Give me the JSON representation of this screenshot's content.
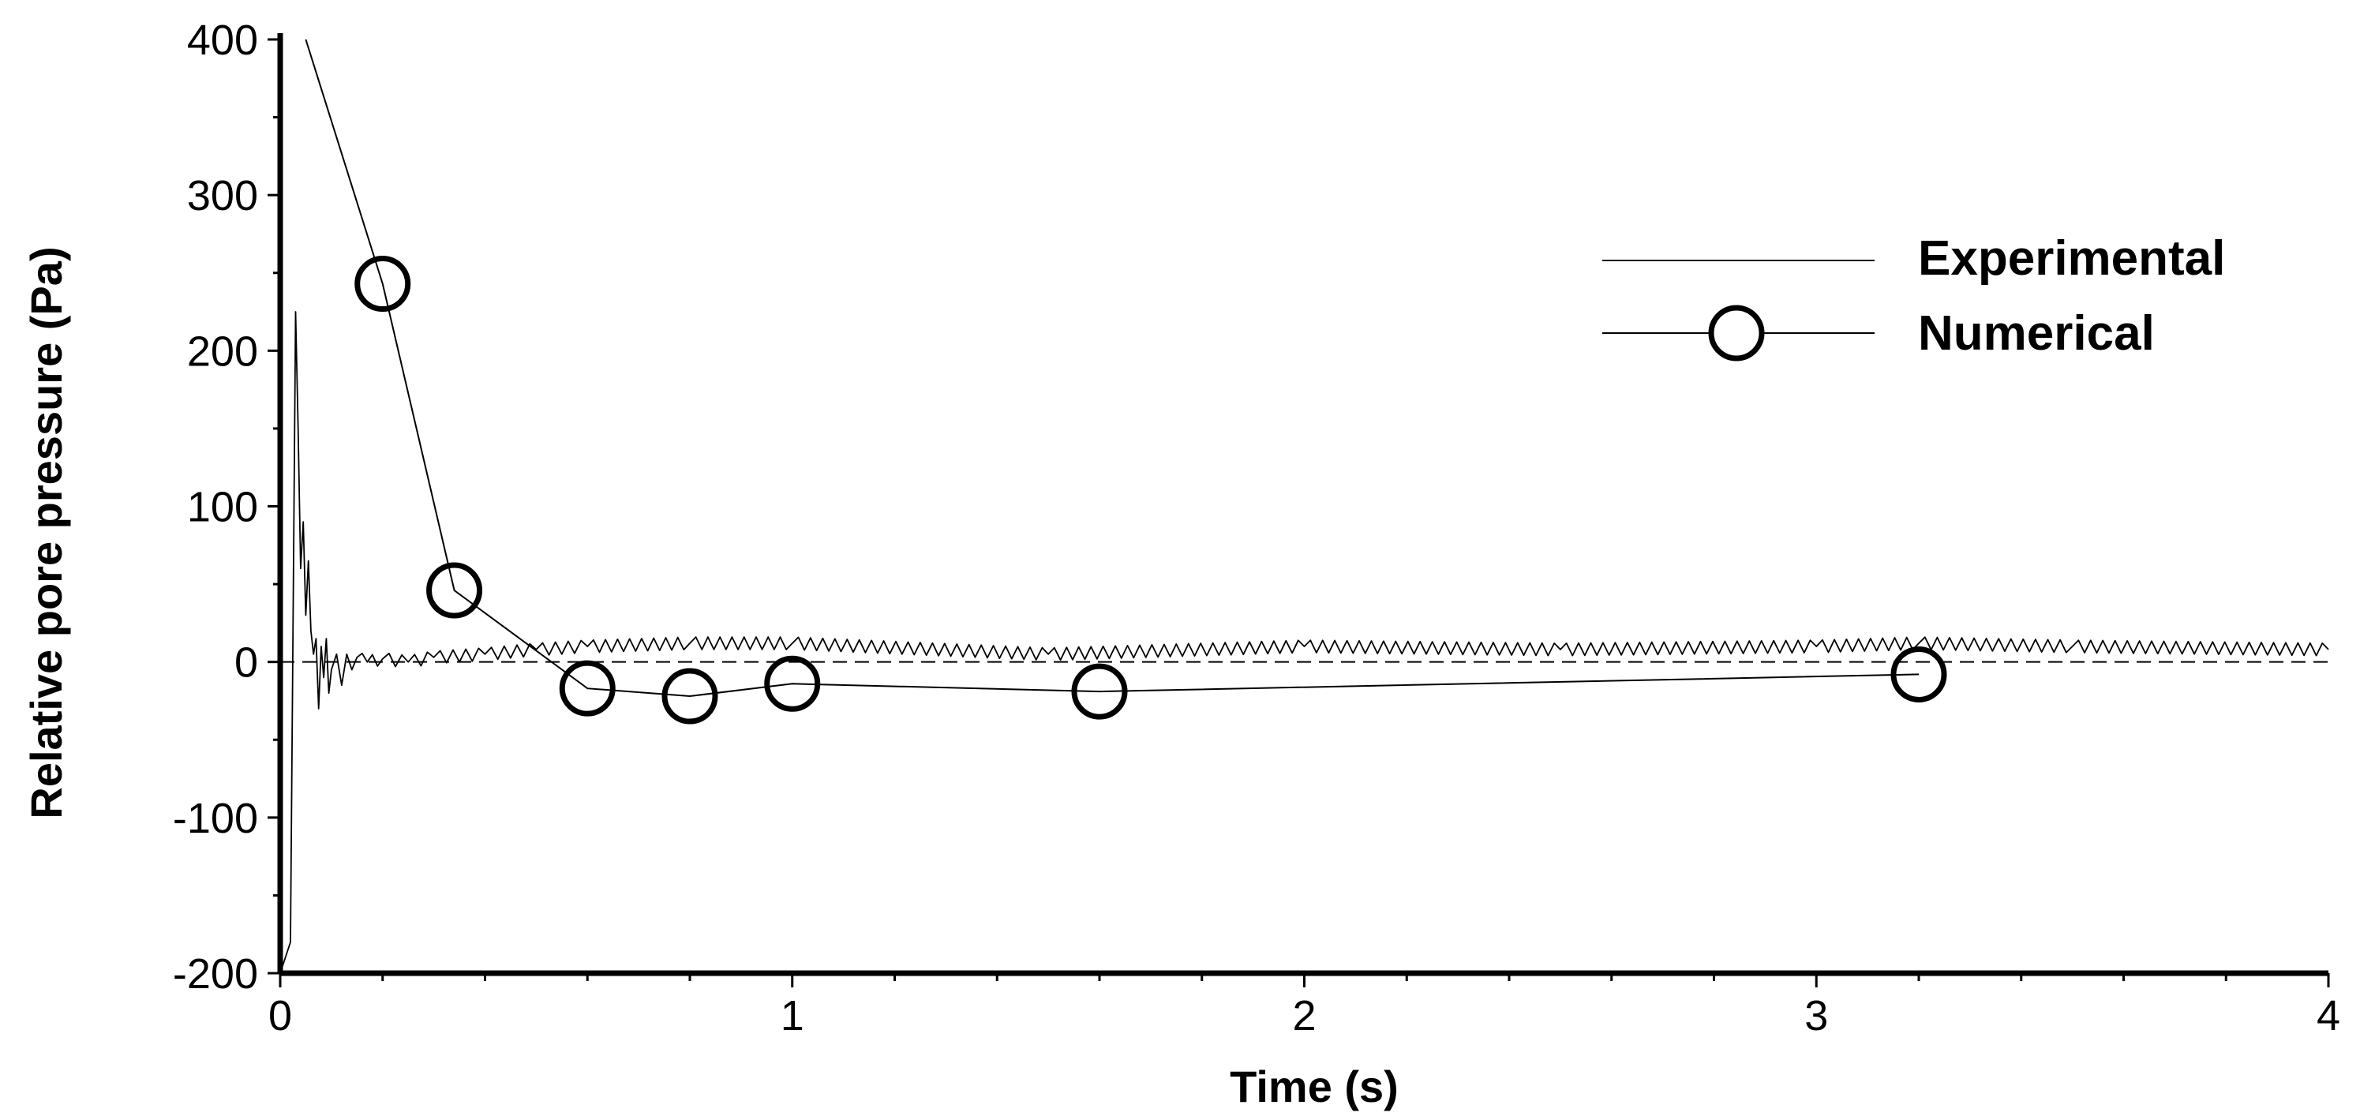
{
  "chart_data": {
    "type": "line",
    "title": "",
    "xlabel": "Time (s)",
    "ylabel": "Relative pore pressure (Pa)",
    "xlim": [
      0,
      4
    ],
    "ylim": [
      -200,
      400
    ],
    "x_ticks": [
      "0",
      "1",
      "2",
      "3",
      "4"
    ],
    "y_ticks": [
      "400",
      "300",
      "200",
      "100",
      "0",
      "-100",
      "-200"
    ],
    "grid": false,
    "zero_reference_line": "dashed",
    "legend": {
      "placement": "top-right"
    },
    "series": [
      {
        "name": "Experimental",
        "style": "thin line, no markers",
        "x": [
          0.0,
          0.02,
          0.03,
          0.035,
          0.04,
          0.045,
          0.05,
          0.055,
          0.06,
          0.065,
          0.07,
          0.075,
          0.08,
          0.085,
          0.09,
          0.095,
          0.1,
          0.11,
          0.12,
          0.13,
          0.14,
          0.15,
          0.17,
          0.2,
          0.25,
          0.3,
          0.4,
          0.5,
          0.6,
          0.8,
          1.0,
          1.5,
          2.0,
          2.5,
          3.0,
          3.2,
          3.5,
          4.0
        ],
        "y": [
          -200,
          -180,
          225,
          150,
          60,
          90,
          30,
          65,
          20,
          5,
          15,
          -30,
          10,
          -10,
          15,
          -20,
          -5,
          5,
          -15,
          5,
          -5,
          3,
          0,
          2,
          0,
          3,
          5,
          8,
          10,
          12,
          12,
          5,
          10,
          8,
          10,
          12,
          10,
          8
        ]
      },
      {
        "name": "Numerical",
        "style": "thin line with open circle markers",
        "x": [
          0.05,
          0.2,
          0.34,
          0.6,
          0.8,
          1.0,
          1.6,
          3.2
        ],
        "y": [
          400,
          243,
          46,
          -17,
          -22,
          -14,
          -19,
          -8
        ],
        "markers_x": [
          0.2,
          0.34,
          0.6,
          0.8,
          1.0,
          1.6,
          3.2
        ],
        "markers_y": [
          243,
          46,
          -17,
          -22,
          -14,
          -19,
          -8
        ]
      }
    ]
  }
}
